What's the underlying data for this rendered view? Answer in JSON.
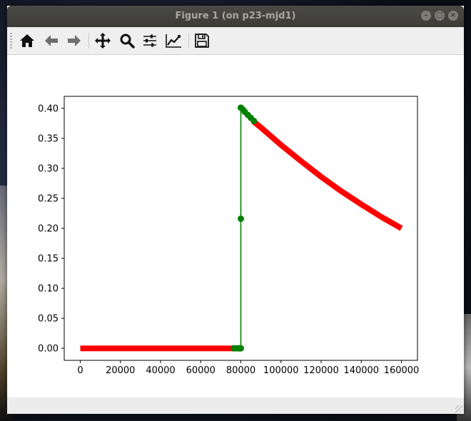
{
  "window": {
    "title": "Figure 1 (on p23-mjd1)"
  },
  "window_buttons": [
    {
      "name": "minimize-button",
      "glyph": "–"
    },
    {
      "name": "maximize-button",
      "glyph": "□"
    },
    {
      "name": "close-button",
      "glyph": "×"
    }
  ],
  "toolbar": {
    "items": [
      {
        "name": "home-button",
        "icon": "home-icon"
      },
      {
        "name": "back-button",
        "icon": "arrow-left-icon"
      },
      {
        "name": "forward-button",
        "icon": "arrow-right-icon"
      },
      {
        "name": "pan-button",
        "icon": "move-icon"
      },
      {
        "name": "zoom-button",
        "icon": "search-icon"
      },
      {
        "name": "configure-subplots-button",
        "icon": "sliders-icon"
      },
      {
        "name": "edit-axes-button",
        "icon": "chart-line-icon"
      },
      {
        "name": "save-button",
        "icon": "save-icon"
      }
    ]
  },
  "chart_data": {
    "type": "line",
    "title": "",
    "xlabel": "",
    "ylabel": "",
    "xlim": [
      -8000,
      168000
    ],
    "ylim": [
      -0.02,
      0.42
    ],
    "grid": false,
    "x_ticks": [
      0,
      20000,
      40000,
      60000,
      80000,
      100000,
      120000,
      140000,
      160000
    ],
    "x_tick_labels": [
      "0",
      "20000",
      "40000",
      "60000",
      "80000",
      "100000",
      "120000",
      "140000",
      "160000"
    ],
    "y_ticks": [
      0.0,
      0.05,
      0.1,
      0.15,
      0.2,
      0.25,
      0.3,
      0.35,
      0.4
    ],
    "y_tick_labels": [
      "0.00",
      "0.05",
      "0.10",
      "0.15",
      "0.20",
      "0.25",
      "0.30",
      "0.35",
      "0.40"
    ],
    "series": [
      {
        "color": "#ff0000",
        "style": "thick-line",
        "x": [
          0,
          80000
        ],
        "y": [
          0.0,
          0.0
        ]
      },
      {
        "color": "#ff0000",
        "style": "thick-line",
        "x": [
          86000,
          90000,
          100000,
          110000,
          120000,
          130000,
          140000,
          150000,
          160000
        ],
        "y": [
          0.379,
          0.368,
          0.339,
          0.312,
          0.286,
          0.262,
          0.24,
          0.219,
          0.2
        ]
      },
      {
        "color": "#008000",
        "style": "line-markers",
        "x": [
          76500,
          78000,
          79000,
          79500,
          80000,
          80000,
          80000,
          80000,
          81000,
          82000,
          83500,
          85000,
          86500
        ],
        "y": [
          0.0,
          0.0,
          0.0,
          0.0,
          0.0,
          0.216,
          0.401,
          0.401,
          0.398,
          0.394,
          0.389,
          0.384,
          0.379
        ]
      }
    ]
  }
}
